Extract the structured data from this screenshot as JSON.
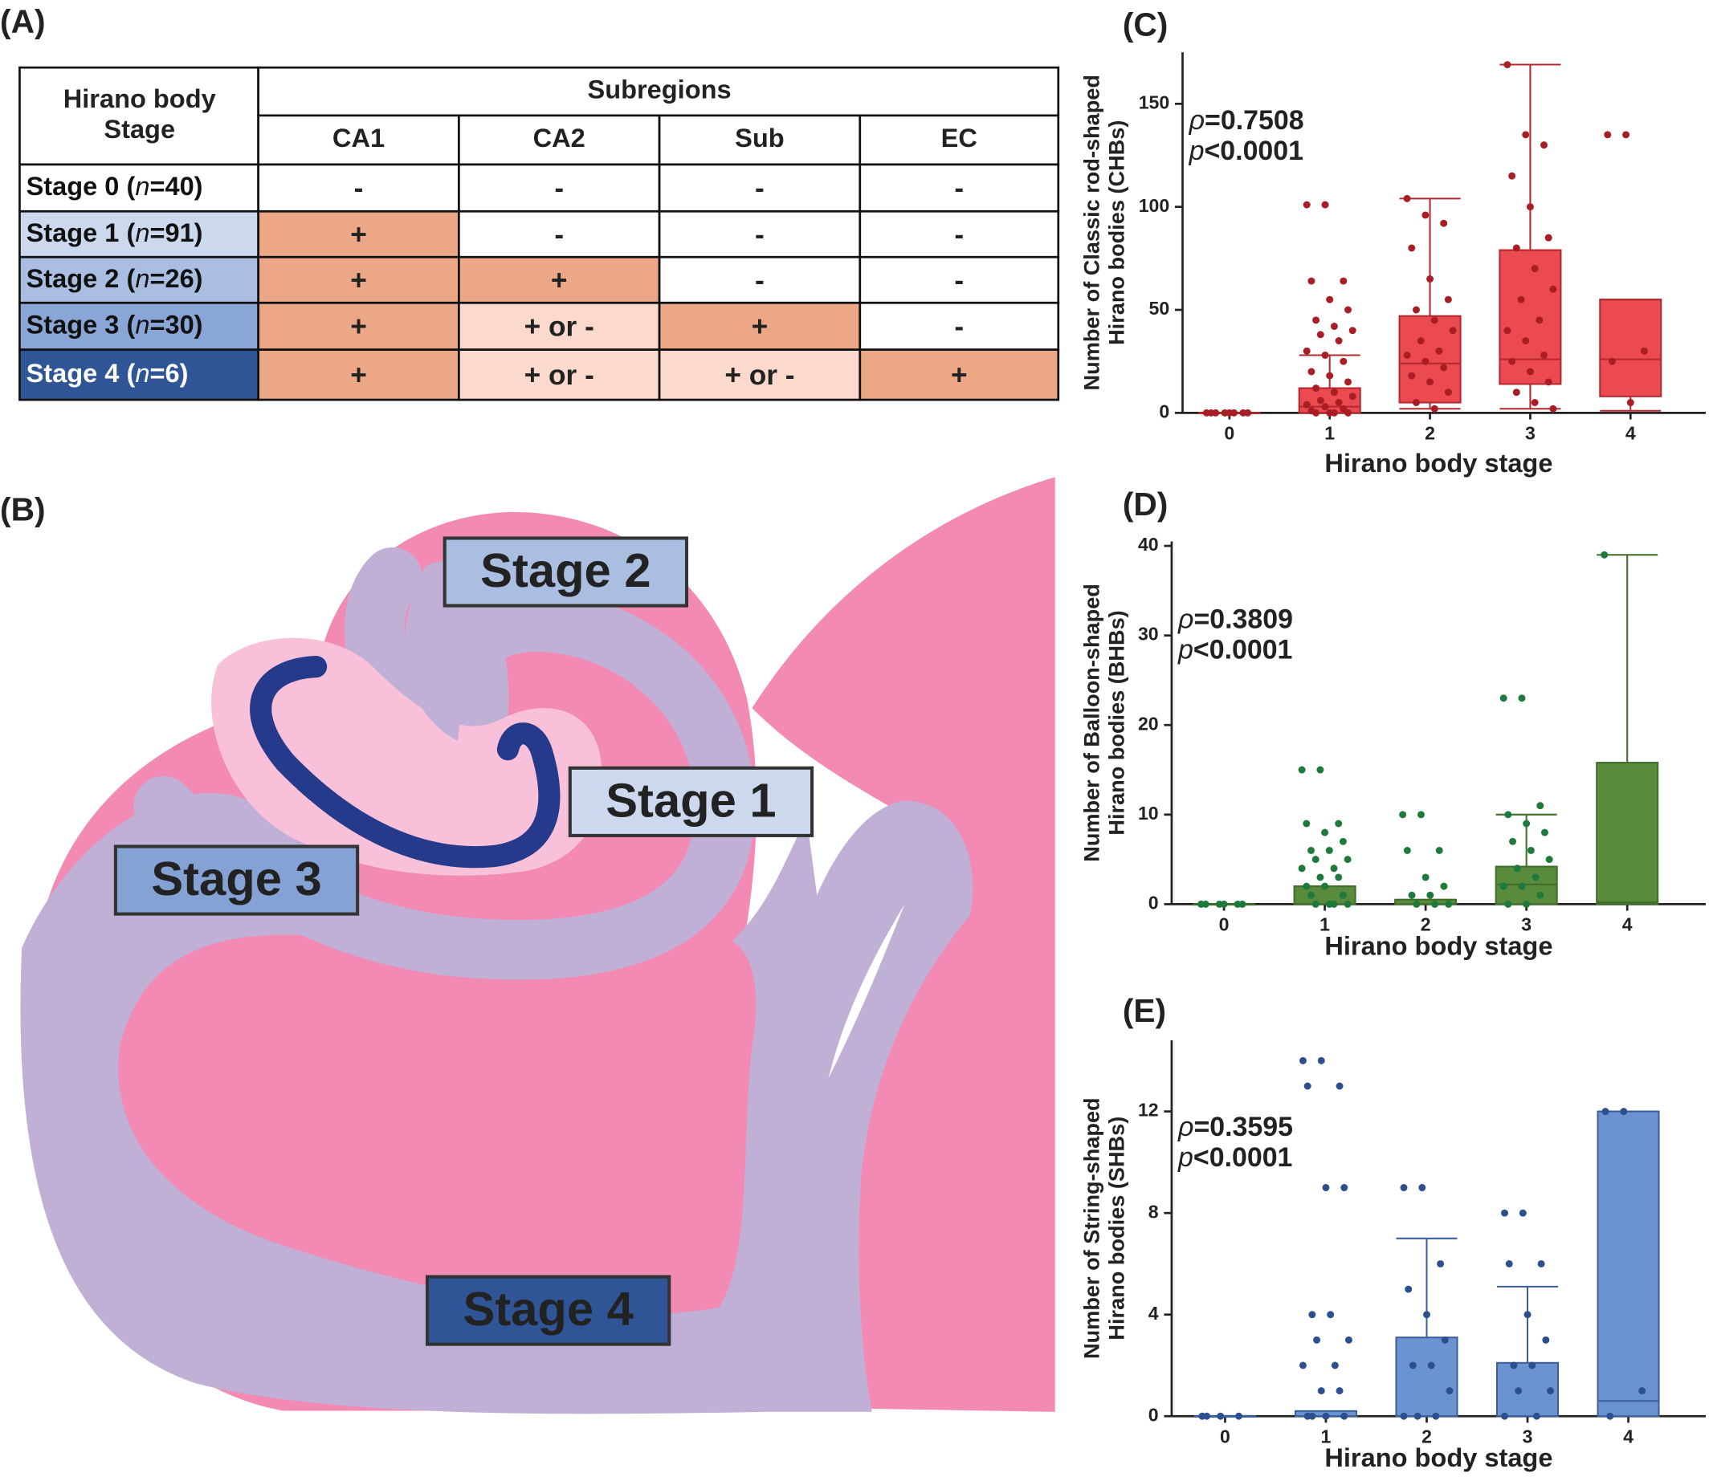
{
  "table": {
    "panel_label": "(A)",
    "stage_header": "Hirano body Stage",
    "group_header": "Subregions",
    "columns": [
      "CA1",
      "CA2",
      "Sub",
      "EC"
    ],
    "shades": {
      "+": "#eba786",
      "+ or -": "#fbdacd",
      "-": "#ffffff"
    },
    "rows": [
      {
        "prefix": "Stage 0 (",
        "italic": "n",
        "suffix": "=40)",
        "color": "#ffffff",
        "text_color": "#111111",
        "cells": [
          "-",
          "-",
          "-",
          "-"
        ]
      },
      {
        "prefix": "Stage 1 (",
        "italic": "n",
        "suffix": "=91)",
        "color": "#cbd8ee",
        "text_color": "#111111",
        "cells": [
          "+",
          "-",
          "-",
          "-"
        ]
      },
      {
        "prefix": "Stage 2 (",
        "italic": "n",
        "suffix": "=26)",
        "color": "#a9bee1",
        "text_color": "#111111",
        "cells": [
          "+",
          "+",
          "-",
          "-"
        ]
      },
      {
        "prefix": "Stage 3 (",
        "italic": "n",
        "suffix": "=30)",
        "color": "#8aa6d6",
        "text_color": "#111111",
        "cells": [
          "+",
          "+ or -",
          "+",
          "-"
        ]
      },
      {
        "prefix": "Stage 4 (",
        "italic": "n",
        "suffix": "=6)",
        "color": "#2f5597",
        "text_color": "#ffffff",
        "cells": [
          "+",
          "+ or -",
          "+ or -",
          "+"
        ]
      }
    ]
  },
  "diagram": {
    "panel_label": "(B)",
    "labels": [
      {
        "text": "Stage 2",
        "color": "#a9bee1",
        "text_color": "#222222"
      },
      {
        "text": "Stage 1",
        "color": "#cbd8ee",
        "text_color": "#222222"
      },
      {
        "text": "Stage 3",
        "color": "#85a2d4",
        "text_color": "#222222"
      },
      {
        "text": "Stage 4",
        "color": "#2f5597",
        "text_color": "#ffffff"
      }
    ]
  },
  "chart_data": [
    {
      "type": "box",
      "panel_label": "(C)",
      "ylabel": [
        "Number of Classic rod-shaped",
        "Hirano bodies (CHBs)"
      ],
      "xlabel": "Hirano body stage",
      "categories": [
        "0",
        "1",
        "2",
        "3",
        "4"
      ],
      "ylim": [
        0,
        175
      ],
      "yticks": [
        0,
        50,
        100,
        150
      ],
      "color": "#ea4a50",
      "edge_color": "#b3282e",
      "point_color": "#a81e24",
      "label_color": "#e83a40",
      "stats": [
        {
          "symbol": "ρ",
          "text": "=0.7508"
        },
        {
          "symbol": "p",
          "text": "<0.0001"
        }
      ],
      "boxes": [
        {
          "min": 0,
          "q1": 0,
          "median": 0,
          "q3": 0,
          "max": 0
        },
        {
          "min": 0,
          "q1": 0,
          "median": 3,
          "q3": 12,
          "max": 28
        },
        {
          "min": 2,
          "q1": 5,
          "median": 24,
          "q3": 47,
          "max": 104
        },
        {
          "min": 2,
          "q1": 14,
          "median": 26,
          "q3": 79,
          "max": 169
        },
        {
          "min": 1,
          "q1": 8,
          "median": 26,
          "q3": 55,
          "max": 55
        }
      ],
      "points": [
        [
          0,
          0,
          0,
          0,
          0,
          0,
          0,
          0
        ],
        [
          101,
          101,
          64,
          64,
          55,
          50,
          45,
          42,
          40,
          38,
          35,
          30,
          28,
          25,
          20,
          18,
          15,
          12,
          10,
          8,
          6,
          5,
          4,
          3,
          2,
          1,
          0,
          0,
          0,
          0
        ],
        [
          104,
          96,
          92,
          80,
          65,
          55,
          50,
          45,
          40,
          35,
          30,
          28,
          25,
          22,
          18,
          15,
          10,
          5,
          2
        ],
        [
          169,
          135,
          130,
          115,
          100,
          85,
          80,
          70,
          60,
          55,
          45,
          40,
          35,
          28,
          25,
          20,
          15,
          10,
          5,
          2
        ],
        [
          135,
          135,
          30,
          25,
          5
        ]
      ]
    },
    {
      "type": "box",
      "panel_label": "(D)",
      "ylabel": [
        "Number of Balloon-shaped",
        "Hirano bodies (BHBs)"
      ],
      "xlabel": "Hirano body stage",
      "categories": [
        "0",
        "1",
        "2",
        "3",
        "4"
      ],
      "ylim": [
        0,
        40.5
      ],
      "yticks": [
        0,
        10,
        20,
        30,
        40
      ],
      "color": "#5a8a3c",
      "edge_color": "#3f6d2a",
      "point_color": "#1e7a3a",
      "label_color": "#4f8a3a",
      "stats": [
        {
          "symbol": "ρ",
          "text": "=0.3809"
        },
        {
          "symbol": "p",
          "text": "<0.0001"
        }
      ],
      "boxes": [
        {
          "min": 0,
          "q1": 0,
          "median": 0,
          "q3": 0,
          "max": 0
        },
        {
          "min": 0,
          "q1": 0,
          "median": 0,
          "q3": 2,
          "max": 2
        },
        {
          "min": 0,
          "q1": 0,
          "median": 0,
          "q3": 0.5,
          "max": 0.5
        },
        {
          "min": 0,
          "q1": 0,
          "median": 2.2,
          "q3": 4.2,
          "max": 10
        },
        {
          "min": 0,
          "q1": 0,
          "median": 0.2,
          "q3": 15.8,
          "max": 39
        }
      ],
      "points": [
        [
          0,
          0,
          0,
          0,
          0,
          0
        ],
        [
          15,
          15,
          9,
          9,
          8,
          7,
          6,
          6,
          5,
          5,
          4,
          4,
          3,
          3,
          2,
          2,
          1,
          1,
          0,
          0,
          0,
          0
        ],
        [
          10,
          10,
          6,
          6,
          3,
          2,
          1,
          1,
          0,
          0,
          0
        ],
        [
          23,
          23,
          11,
          10,
          9,
          8,
          7,
          6,
          5,
          4,
          3,
          2,
          2,
          1,
          0,
          0
        ],
        [
          39
        ]
      ]
    },
    {
      "type": "box",
      "panel_label": "(E)",
      "ylabel": [
        "Number of String-shaped",
        "Hirano bodies (SHBs)"
      ],
      "xlabel": "Hirano body stage",
      "categories": [
        "0",
        "1",
        "2",
        "3",
        "4"
      ],
      "ylim": [
        0,
        14.8
      ],
      "yticks": [
        0,
        4,
        8,
        12
      ],
      "color": "#6a93d0",
      "edge_color": "#3c5f9c",
      "point_color": "#2c4f8f",
      "label_color": "#5b8fd6",
      "stats": [
        {
          "symbol": "ρ",
          "text": "=0.3595"
        },
        {
          "symbol": "p",
          "text": "<0.0001"
        }
      ],
      "boxes": [
        {
          "min": 0,
          "q1": 0,
          "median": 0,
          "q3": 0,
          "max": 0
        },
        {
          "min": 0,
          "q1": 0,
          "median": 0,
          "q3": 0.2,
          "max": 0.2
        },
        {
          "min": 0,
          "q1": 0,
          "median": 0,
          "q3": 3.1,
          "max": 7
        },
        {
          "min": 0,
          "q1": 0,
          "median": 0,
          "q3": 2.1,
          "max": 5.1
        },
        {
          "min": 0,
          "q1": 0,
          "median": 0.6,
          "q3": 12,
          "max": 12
        }
      ],
      "points": [
        [
          0,
          0,
          0,
          0
        ],
        [
          14,
          14,
          13,
          13,
          9,
          9,
          4,
          4,
          3,
          3,
          2,
          2,
          1,
          1,
          0,
          0,
          0,
          0
        ],
        [
          9,
          9,
          6,
          5,
          4,
          3,
          2,
          2,
          1,
          0,
          0,
          0
        ],
        [
          8,
          8,
          6,
          6,
          4,
          3,
          2,
          2,
          1,
          1,
          0,
          0
        ],
        [
          12,
          12,
          1,
          0
        ]
      ]
    }
  ]
}
